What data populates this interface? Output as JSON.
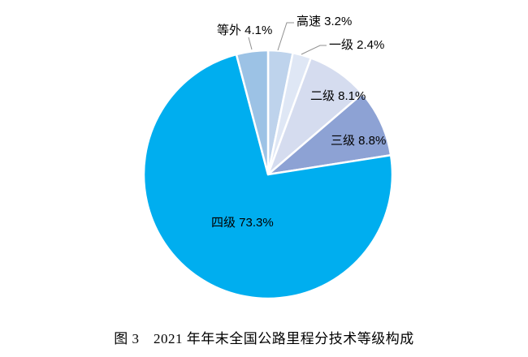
{
  "figure": {
    "caption": "图 3　2021 年年末全国公路里程分技术等级构成"
  },
  "chart_data": {
    "type": "pie",
    "title": "图 3　2021 年年末全国公路里程分技术等级构成",
    "unit": "%",
    "start_angle_deg": 0,
    "direction": "clockwise",
    "legend": "none",
    "categories": [
      "高速",
      "一级",
      "二级",
      "三级",
      "四级",
      "等外"
    ],
    "values": [
      3.2,
      2.4,
      8.1,
      8.8,
      73.3,
      4.1
    ],
    "slices": [
      {
        "id": "expressway",
        "label": "高速",
        "value": 3.2,
        "display": "高速 3.2%",
        "color": "#BED3EC",
        "label_placement": "outside"
      },
      {
        "id": "class-1",
        "label": "一级",
        "value": 2.4,
        "display": "一级 2.4%",
        "color": "#DFE7F5",
        "label_placement": "outside"
      },
      {
        "id": "class-2",
        "label": "二级",
        "value": 8.1,
        "display": "二级 8.1%",
        "color": "#D5DCEF",
        "label_placement": "inside"
      },
      {
        "id": "class-3",
        "label": "三级",
        "value": 8.8,
        "display": "三级 8.8%",
        "color": "#8DA2D4",
        "label_placement": "inside"
      },
      {
        "id": "class-4",
        "label": "四级",
        "value": 73.3,
        "display": "四级 73.3%",
        "color": "#00AEEF",
        "label_placement": "inside"
      },
      {
        "id": "substandard",
        "label": "等外",
        "value": 4.1,
        "display": "等外 4.1%",
        "color": "#9CC2E5",
        "label_placement": "outside"
      }
    ],
    "slice_border_color": "#FFFFFF",
    "leader_line_color": "#909090",
    "label_text_color": "#000000",
    "background_color": "#FFFFFF"
  }
}
